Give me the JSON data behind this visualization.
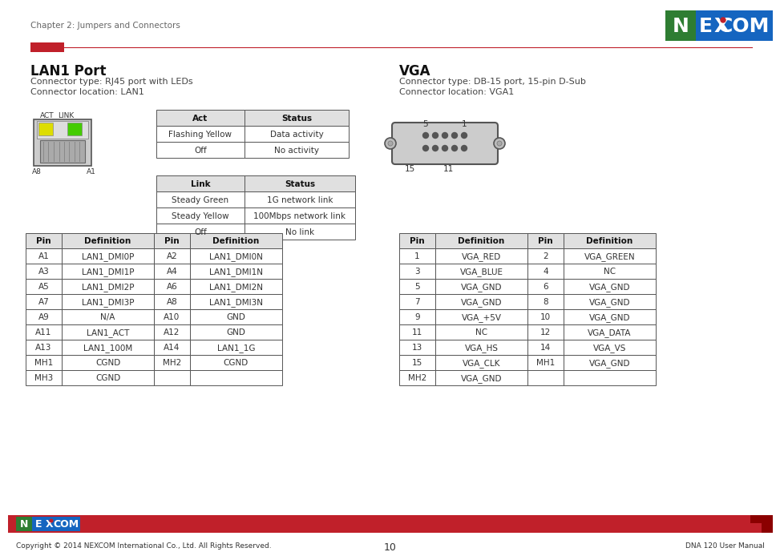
{
  "page_title": "Chapter 2: Jumpers and Connectors",
  "red_bar_color": "#C0202A",
  "header_line_color": "#C0202A",
  "section1_title": "LAN1 Port",
  "section1_sub1": "Connector type: RJ45 port with LEDs",
  "section1_sub2": "Connector location: LAN1",
  "section2_title": "VGA",
  "section2_sub1": "Connector type: DB-15 port, 15-pin D-Sub",
  "section2_sub2": "Connector location: VGA1",
  "act_table_headers": [
    "Act",
    "Status"
  ],
  "act_table_rows": [
    [
      "Flashing Yellow",
      "Data activity"
    ],
    [
      "Off",
      "No activity"
    ]
  ],
  "link_table_headers": [
    "Link",
    "Status"
  ],
  "link_table_rows": [
    [
      "Steady Green",
      "1G network link"
    ],
    [
      "Steady Yellow",
      "100Mbps network link"
    ],
    [
      "Off",
      "No link"
    ]
  ],
  "lan_pin_headers": [
    "Pin",
    "Definition",
    "Pin",
    "Definition"
  ],
  "lan_pin_rows": [
    [
      "A1",
      "LAN1_DMI0P",
      "A2",
      "LAN1_DMI0N"
    ],
    [
      "A3",
      "LAN1_DMI1P",
      "A4",
      "LAN1_DMI1N"
    ],
    [
      "A5",
      "LAN1_DMI2P",
      "A6",
      "LAN1_DMI2N"
    ],
    [
      "A7",
      "LAN1_DMI3P",
      "A8",
      "LAN1_DMI3N"
    ],
    [
      "A9",
      "N/A",
      "A10",
      "GND"
    ],
    [
      "A11",
      "LAN1_ACT",
      "A12",
      "GND"
    ],
    [
      "A13",
      "LAN1_100M",
      "A14",
      "LAN1_1G"
    ],
    [
      "MH1",
      "CGND",
      "MH2",
      "CGND"
    ],
    [
      "MH3",
      "CGND",
      "",
      ""
    ]
  ],
  "vga_pin_headers": [
    "Pin",
    "Definition",
    "Pin",
    "Definition"
  ],
  "vga_pin_rows": [
    [
      "1",
      "VGA_RED",
      "2",
      "VGA_GREEN"
    ],
    [
      "3",
      "VGA_BLUE",
      "4",
      "NC"
    ],
    [
      "5",
      "VGA_GND",
      "6",
      "VGA_GND"
    ],
    [
      "7",
      "VGA_GND",
      "8",
      "VGA_GND"
    ],
    [
      "9",
      "VGA_+5V",
      "10",
      "VGA_GND"
    ],
    [
      "11",
      "NC",
      "12",
      "VGA_DATA"
    ],
    [
      "13",
      "VGA_HS",
      "14",
      "VGA_VS"
    ],
    [
      "15",
      "VGA_CLK",
      "MH1",
      "VGA_GND"
    ],
    [
      "MH2",
      "VGA_GND",
      "",
      ""
    ]
  ],
  "footer_left": "Copyright © 2014 NEXCOM International Co., Ltd. All Rights Reserved.",
  "footer_center": "10",
  "footer_right": "DNA 120 User Manual",
  "table_border_color": "#555555",
  "table_header_bg": "#E0E0E0",
  "text_color": "#333333",
  "bg_color": "#FFFFFF",
  "footer_bar_color": "#C0202A",
  "logo_green": "#2E7D32",
  "logo_blue": "#1565C0",
  "logo_red": "#C0202A",
  "header_red": "#C0202A"
}
